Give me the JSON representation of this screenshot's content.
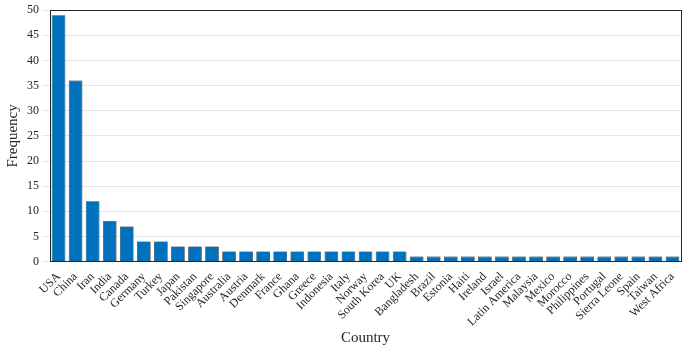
{
  "chart_data": {
    "type": "bar",
    "x_label": "Country",
    "y_label": "Frequency",
    "categories": [
      "USA",
      "China",
      "Iran",
      "India",
      "Canada",
      "Germany",
      "Turkey",
      "Japan",
      "Pakistan",
      "Singapore",
      "Australia",
      "Austria",
      "Denmark",
      "France",
      "Ghana",
      "Greece",
      "Indonesia",
      "Italy",
      "Norway",
      "South Korea",
      "UK",
      "Bangladesh",
      "Brazil",
      "Estonia",
      "Haiti",
      "Ireland",
      "Israel",
      "Latin America",
      "Malaysia",
      "Mexico",
      "Morocco",
      "Philippines",
      "Portugal",
      "Sierra Leone",
      "Spain",
      "Taiwan",
      "West Africa"
    ],
    "values": [
      49,
      36,
      12,
      8,
      7,
      4,
      4,
      3,
      3,
      3,
      2,
      2,
      2,
      2,
      2,
      2,
      2,
      2,
      2,
      2,
      2,
      1,
      1,
      1,
      1,
      1,
      1,
      1,
      1,
      1,
      1,
      1,
      1,
      1,
      1,
      1,
      1
    ],
    "color": "#0072bd",
    "ylim": [
      0,
      50
    ],
    "yticks": [
      0,
      5,
      10,
      15,
      20,
      25,
      30,
      35,
      40,
      45,
      50
    ],
    "grid": true
  }
}
